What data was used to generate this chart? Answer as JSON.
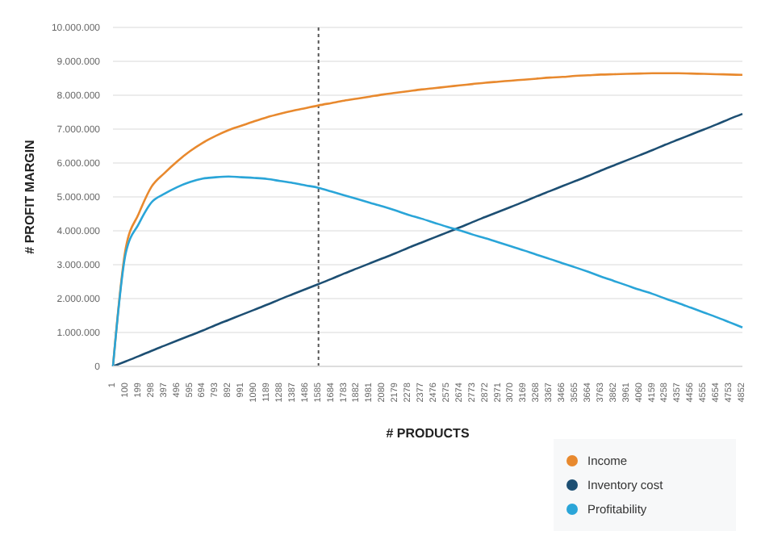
{
  "chart_data": {
    "type": "line",
    "xlabel": "# PRODUCTS",
    "ylabel": "# PROFIT MARGIN",
    "categories": [
      "1",
      "100",
      "199",
      "298",
      "397",
      "496",
      "595",
      "694",
      "793",
      "892",
      "991",
      "1090",
      "1189",
      "1288",
      "1387",
      "1486",
      "1585",
      "1684",
      "1783",
      "1882",
      "1981",
      "2080",
      "2179",
      "2278",
      "2377",
      "2476",
      "2575",
      "2674",
      "2773",
      "2872",
      "2971",
      "3070",
      "3169",
      "3268",
      "3367",
      "3466",
      "3565",
      "3664",
      "3763",
      "3862",
      "3961",
      "4060",
      "4159",
      "4258",
      "4357",
      "4456",
      "4555",
      "4654",
      "4753",
      "4852"
    ],
    "series": [
      {
        "name": "Income",
        "color": "#e8892e",
        "values": [
          0,
          3500000,
          4500000,
          5300000,
          5700000,
          6050000,
          6350000,
          6600000,
          6800000,
          6970000,
          7100000,
          7230000,
          7350000,
          7450000,
          7540000,
          7620000,
          7700000,
          7770000,
          7840000,
          7900000,
          7960000,
          8020000,
          8070000,
          8120000,
          8170000,
          8210000,
          8250000,
          8290000,
          8330000,
          8370000,
          8400000,
          8430000,
          8460000,
          8490000,
          8520000,
          8540000,
          8570000,
          8590000,
          8610000,
          8620000,
          8630000,
          8640000,
          8650000,
          8650000,
          8650000,
          8640000,
          8630000,
          8620000,
          8610000,
          8600000
        ]
      },
      {
        "name": "Inventory cost",
        "color": "#1d4f73",
        "values": [
          0,
          150000,
          300000,
          460000,
          610000,
          760000,
          910000,
          1060000,
          1220000,
          1370000,
          1520000,
          1670000,
          1820000,
          1980000,
          2130000,
          2280000,
          2430000,
          2580000,
          2740000,
          2890000,
          3040000,
          3190000,
          3340000,
          3500000,
          3650000,
          3800000,
          3950000,
          4100000,
          4260000,
          4410000,
          4560000,
          4710000,
          4860000,
          5020000,
          5170000,
          5320000,
          5470000,
          5620000,
          5780000,
          5930000,
          6080000,
          6230000,
          6380000,
          6540000,
          6690000,
          6840000,
          6990000,
          7140000,
          7300000,
          7450000
        ]
      },
      {
        "name": "Profitability",
        "color": "#2aa5d8",
        "values": [
          0,
          3350000,
          4200000,
          4840000,
          5090000,
          5290000,
          5440000,
          5540000,
          5580000,
          5600000,
          5580000,
          5560000,
          5530000,
          5470000,
          5410000,
          5340000,
          5270000,
          5160000,
          5050000,
          4940000,
          4830000,
          4720000,
          4600000,
          4470000,
          4360000,
          4240000,
          4120000,
          4010000,
          3890000,
          3780000,
          3660000,
          3540000,
          3420000,
          3290000,
          3170000,
          3040000,
          2920000,
          2790000,
          2650000,
          2520000,
          2390000,
          2260000,
          2140000,
          2000000,
          1870000,
          1730000,
          1590000,
          1450000,
          1300000,
          1150000
        ]
      }
    ],
    "ylim": [
      0,
      10000000
    ],
    "yticks": [
      0,
      {
        "value": 1000000,
        "label": "1.000.000"
      },
      {
        "value": 2000000,
        "label": "2.000.000"
      },
      {
        "value": 3000000,
        "label": "3.000.000"
      },
      {
        "value": 4000000,
        "label": "4.000.000"
      },
      {
        "value": 5000000,
        "label": "5.000.000"
      },
      {
        "value": 6000000,
        "label": "6.000.000"
      },
      {
        "value": 7000000,
        "label": "7.000.000"
      },
      {
        "value": 8000000,
        "label": "8.000.000"
      },
      {
        "value": 9000000,
        "label": "9.000.000"
      },
      {
        "value": 10000000,
        "label": "10.000.000"
      }
    ],
    "grid": "y",
    "legend": "bottom right",
    "marker": "none",
    "line_style": "solid",
    "ref_lines": [
      {
        "axis": "x",
        "value": "1585",
        "color": "#555555",
        "line_style": "dotted"
      }
    ]
  }
}
